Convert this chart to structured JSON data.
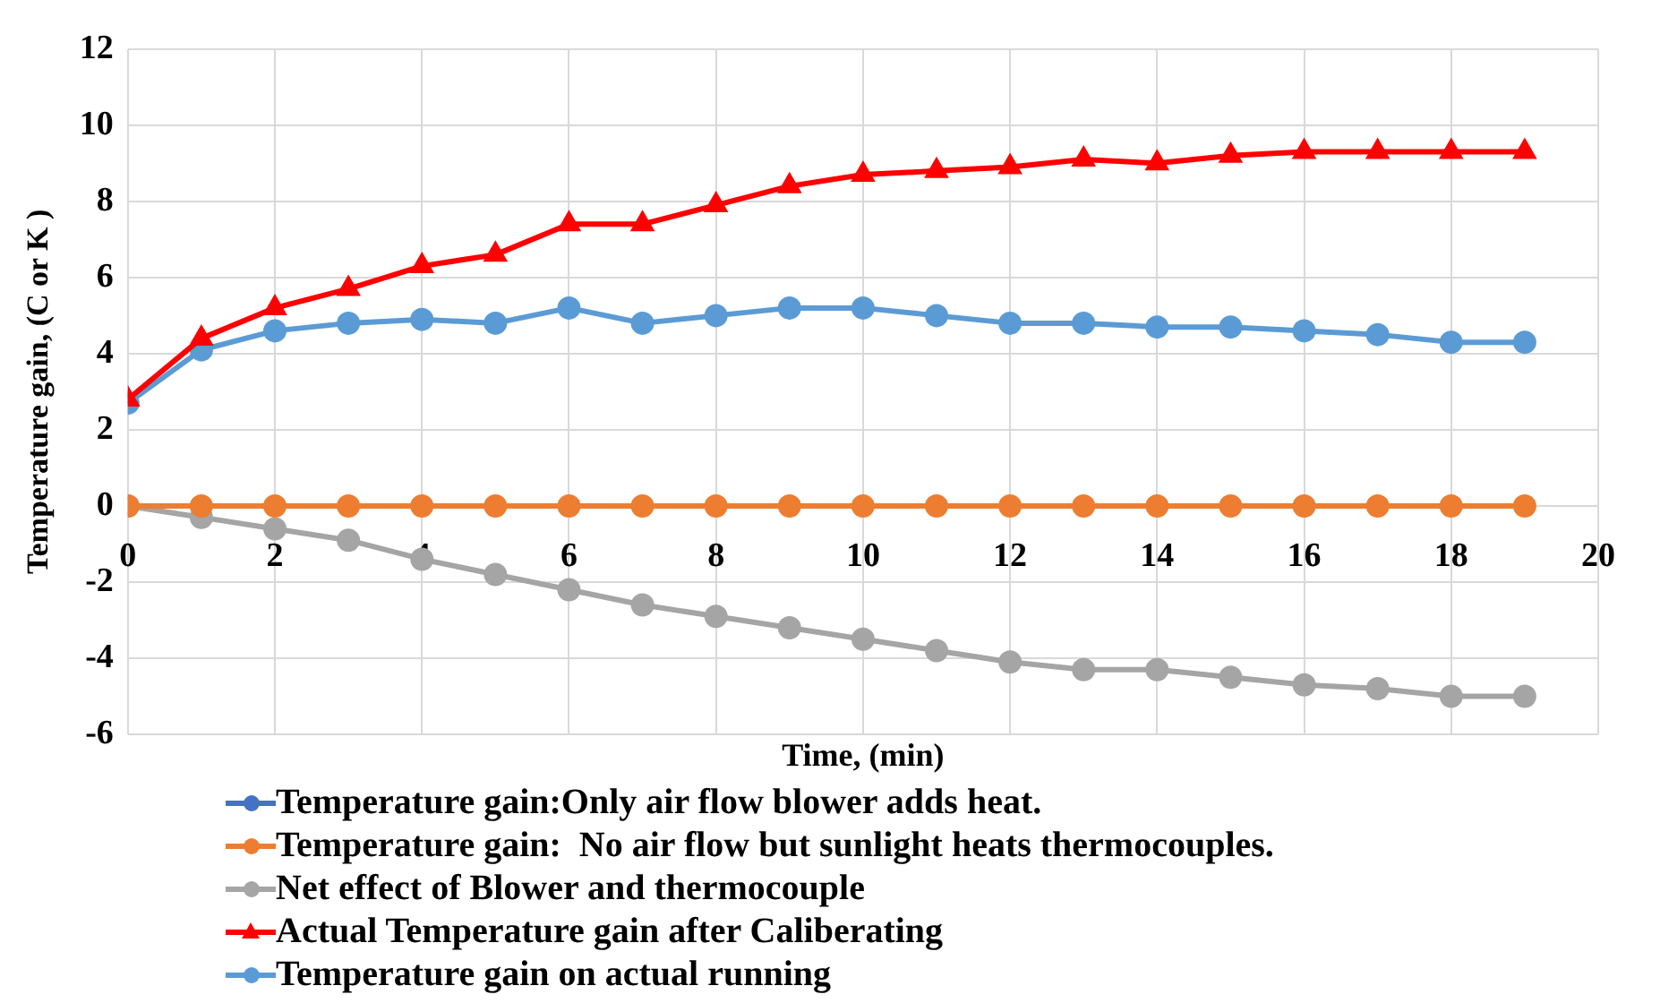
{
  "chart_data": {
    "type": "line",
    "xlabel": "Time, (min)",
    "ylabel": "Temperature gain, (C or K )",
    "x": [
      0,
      1,
      2,
      3,
      4,
      5,
      6,
      7,
      8,
      9,
      10,
      11,
      12,
      13,
      14,
      15,
      16,
      17,
      18,
      19
    ],
    "xlim": [
      0,
      20
    ],
    "xticks": [
      0,
      2,
      4,
      6,
      8,
      10,
      12,
      14,
      16,
      18,
      20
    ],
    "ylim": [
      -6,
      12
    ],
    "yticks": [
      -6,
      -4,
      -2,
      0,
      2,
      4,
      6,
      8,
      10,
      12
    ],
    "grid": true,
    "legend": "bottom",
    "line_style": "solid",
    "series": [
      {
        "name": "Temperature gain:Only air flow blower adds heat.",
        "color": "#4472c4",
        "marker": "circle",
        "values": [
          null,
          null,
          null,
          null,
          null,
          null,
          null,
          null,
          null,
          null,
          null,
          null,
          null,
          null,
          null,
          null,
          null,
          null,
          null,
          null
        ]
      },
      {
        "name": "Temperature gain:  No air flow but sunlight heats thermocouples.",
        "color": "#ed7d31",
        "marker": "circle",
        "values": [
          0,
          0,
          0,
          0,
          0,
          0,
          0,
          0,
          0,
          0,
          0,
          0,
          0,
          0,
          0,
          0,
          0,
          0,
          0,
          0
        ]
      },
      {
        "name": "Net effect of Blower and thermocouple",
        "color": "#a5a5a5",
        "marker": "circle",
        "values": [
          0,
          -0.3,
          -0.6,
          -0.9,
          -1.4,
          -1.8,
          -2.2,
          -2.6,
          -2.9,
          -3.2,
          -3.5,
          -3.8,
          -4.1,
          -4.3,
          -4.3,
          -4.5,
          -4.7,
          -4.8,
          -5.0,
          -5.0
        ]
      },
      {
        "name": "Actual Temperature gain after Caliberating",
        "color": "#ff0000",
        "marker": "triangle",
        "values": [
          2.8,
          4.4,
          5.2,
          5.7,
          6.3,
          6.6,
          7.4,
          7.4,
          7.9,
          8.4,
          8.7,
          8.8,
          8.9,
          9.1,
          9.0,
          9.2,
          9.3,
          9.3,
          9.3,
          9.3
        ]
      },
      {
        "name": "Temperature gain on actual running",
        "color": "#5b9bd5",
        "marker": "circle",
        "values": [
          2.7,
          4.1,
          4.6,
          4.8,
          4.9,
          4.8,
          5.2,
          4.8,
          5.0,
          5.2,
          5.2,
          5.0,
          4.8,
          4.8,
          4.7,
          4.7,
          4.6,
          4.5,
          4.3,
          4.3
        ]
      }
    ]
  }
}
